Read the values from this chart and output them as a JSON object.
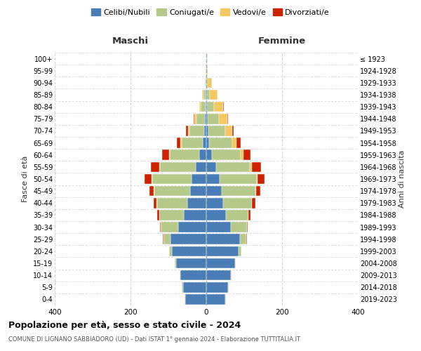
{
  "age_groups": [
    "0-4",
    "5-9",
    "10-14",
    "15-19",
    "20-24",
    "25-29",
    "30-34",
    "35-39",
    "40-44",
    "45-49",
    "50-54",
    "55-59",
    "60-64",
    "65-69",
    "70-74",
    "75-79",
    "80-84",
    "85-89",
    "90-94",
    "95-99",
    "100+"
  ],
  "birth_years": [
    "2019-2023",
    "2014-2018",
    "2009-2013",
    "2004-2008",
    "1999-2003",
    "1994-1998",
    "1989-1993",
    "1984-1988",
    "1979-1983",
    "1974-1978",
    "1969-1973",
    "1964-1968",
    "1959-1963",
    "1954-1958",
    "1949-1953",
    "1944-1948",
    "1939-1943",
    "1934-1938",
    "1929-1933",
    "1924-1928",
    "≤ 1923"
  ],
  "colors": {
    "celibi": "#4a7db5",
    "coniugati": "#b5c98a",
    "vedovi": "#f5c761",
    "divorziati": "#cc2200"
  },
  "male": {
    "celibi": [
      55,
      62,
      68,
      80,
      90,
      95,
      75,
      60,
      50,
      42,
      38,
      28,
      18,
      10,
      6,
      4,
      2,
      1,
      0,
      0,
      0
    ],
    "coniugati": [
      2,
      2,
      2,
      3,
      8,
      18,
      45,
      65,
      80,
      95,
      105,
      95,
      78,
      55,
      38,
      22,
      12,
      6,
      2,
      1,
      0
    ],
    "vedovi": [
      0,
      0,
      0,
      0,
      0,
      0,
      0,
      0,
      1,
      1,
      2,
      2,
      3,
      3,
      4,
      5,
      4,
      4,
      2,
      1,
      0
    ],
    "divorziati": [
      0,
      0,
      0,
      0,
      0,
      1,
      3,
      5,
      8,
      12,
      18,
      22,
      18,
      10,
      5,
      3,
      1,
      0,
      0,
      0,
      0
    ]
  },
  "female": {
    "nubili": [
      50,
      58,
      65,
      75,
      85,
      88,
      65,
      52,
      45,
      40,
      35,
      25,
      15,
      8,
      5,
      3,
      2,
      1,
      0,
      0,
      0
    ],
    "coniugate": [
      2,
      2,
      2,
      3,
      8,
      18,
      42,
      60,
      75,
      90,
      98,
      90,
      75,
      60,
      45,
      30,
      18,
      8,
      4,
      1,
      0
    ],
    "vedove": [
      0,
      0,
      0,
      0,
      0,
      0,
      0,
      0,
      1,
      1,
      3,
      5,
      8,
      12,
      18,
      22,
      25,
      20,
      10,
      3,
      1
    ],
    "divorziate": [
      0,
      0,
      0,
      0,
      0,
      1,
      2,
      5,
      8,
      12,
      18,
      25,
      18,
      10,
      5,
      3,
      1,
      1,
      0,
      0,
      0
    ]
  },
  "title": "Popolazione per età, sesso e stato civile - 2024",
  "subtitle": "COMUNE DI LIGNANO SABBIADORO (UD) - Dati ISTAT 1° gennaio 2024 - Elaborazione TUTTITALIA.IT",
  "xlabel_left": "Maschi",
  "xlabel_right": "Femmine",
  "ylabel": "Fasce di età",
  "ylabel_right": "Anni di nascita",
  "legend_labels": [
    "Celibi/Nubili",
    "Coniugati/e",
    "Vedovi/e",
    "Divorziati/e"
  ],
  "xlim": 400,
  "background_color": "#ffffff",
  "grid_color": "#cccccc"
}
